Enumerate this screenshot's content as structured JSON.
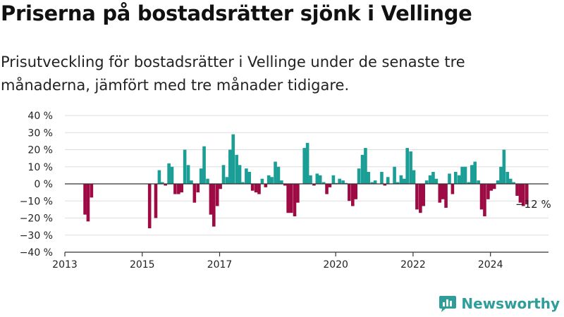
{
  "title": "Priserna på bostadsrätter sjönk i Vellinge",
  "subtitle": "Prisutveckling för bostadsrätter i Vellinge under de senaste tre månaderna, jämfört med tre månader tidigare.",
  "brand": "Newsworthy",
  "colors": {
    "positive": "#1a9e96",
    "negative": "#9e0a44",
    "grid": "#dddddd",
    "zero_line": "#333333",
    "brand": "#2f9e9a"
  },
  "chart_data": {
    "type": "bar",
    "title": "",
    "xlabel": "",
    "ylabel": "",
    "ylim": [
      -40,
      40
    ],
    "y_ticks": [
      -40,
      -30,
      -20,
      -10,
      0,
      10,
      20,
      30,
      40
    ],
    "y_tick_labels": [
      "−40 %",
      "−30 %",
      "−20 %",
      "−10 %",
      "0 %",
      "10 %",
      "20 %",
      "30 %",
      "40 %"
    ],
    "x_range": [
      2013.0,
      2025.5
    ],
    "x_ticks": [
      2013,
      2015,
      2017,
      2020,
      2022,
      2024
    ],
    "grid": true,
    "annotation": {
      "x": 2024.96,
      "y": -12,
      "text": "−12 %"
    },
    "points": [
      {
        "x": 2013.52,
        "y": -18
      },
      {
        "x": 2013.6,
        "y": -22
      },
      {
        "x": 2013.69,
        "y": -8
      },
      {
        "x": 2015.19,
        "y": -26
      },
      {
        "x": 2015.35,
        "y": -20
      },
      {
        "x": 2015.44,
        "y": 8
      },
      {
        "x": 2015.52,
        "y": 1
      },
      {
        "x": 2015.6,
        "y": -1
      },
      {
        "x": 2015.69,
        "y": 12
      },
      {
        "x": 2015.77,
        "y": 10
      },
      {
        "x": 2015.85,
        "y": -6
      },
      {
        "x": 2015.94,
        "y": -6
      },
      {
        "x": 2016.02,
        "y": -5
      },
      {
        "x": 2016.1,
        "y": 20
      },
      {
        "x": 2016.19,
        "y": 11
      },
      {
        "x": 2016.27,
        "y": 2
      },
      {
        "x": 2016.35,
        "y": -11
      },
      {
        "x": 2016.44,
        "y": -5
      },
      {
        "x": 2016.52,
        "y": 9
      },
      {
        "x": 2016.6,
        "y": 22
      },
      {
        "x": 2016.69,
        "y": 3
      },
      {
        "x": 2016.77,
        "y": -18
      },
      {
        "x": 2016.85,
        "y": -25
      },
      {
        "x": 2016.94,
        "y": -13
      },
      {
        "x": 2017.02,
        "y": -3
      },
      {
        "x": 2017.1,
        "y": 11
      },
      {
        "x": 2017.19,
        "y": 4
      },
      {
        "x": 2017.27,
        "y": 20
      },
      {
        "x": 2017.35,
        "y": 29
      },
      {
        "x": 2017.44,
        "y": 17
      },
      {
        "x": 2017.52,
        "y": 11
      },
      {
        "x": 2017.6,
        "y": 1
      },
      {
        "x": 2017.69,
        "y": 9
      },
      {
        "x": 2017.77,
        "y": 7
      },
      {
        "x": 2017.85,
        "y": -4
      },
      {
        "x": 2017.94,
        "y": -5
      },
      {
        "x": 2018.02,
        "y": -6
      },
      {
        "x": 2018.1,
        "y": 3
      },
      {
        "x": 2018.19,
        "y": -2
      },
      {
        "x": 2018.27,
        "y": 5
      },
      {
        "x": 2018.35,
        "y": 4
      },
      {
        "x": 2018.44,
        "y": 13
      },
      {
        "x": 2018.52,
        "y": 10
      },
      {
        "x": 2018.6,
        "y": 2
      },
      {
        "x": 2018.69,
        "y": -1
      },
      {
        "x": 2018.77,
        "y": -17
      },
      {
        "x": 2018.85,
        "y": -17
      },
      {
        "x": 2018.94,
        "y": -19
      },
      {
        "x": 2019.02,
        "y": -11
      },
      {
        "x": 2019.19,
        "y": 21
      },
      {
        "x": 2019.27,
        "y": 24
      },
      {
        "x": 2019.35,
        "y": 5
      },
      {
        "x": 2019.44,
        "y": -1
      },
      {
        "x": 2019.52,
        "y": 6
      },
      {
        "x": 2019.6,
        "y": 5
      },
      {
        "x": 2019.69,
        "y": 1
      },
      {
        "x": 2019.77,
        "y": -6
      },
      {
        "x": 2019.85,
        "y": -2
      },
      {
        "x": 2019.94,
        "y": 5
      },
      {
        "x": 2020.02,
        "y": 0.5
      },
      {
        "x": 2020.1,
        "y": 3
      },
      {
        "x": 2020.19,
        "y": 2
      },
      {
        "x": 2020.27,
        "y": 0.5
      },
      {
        "x": 2020.35,
        "y": -10
      },
      {
        "x": 2020.44,
        "y": -13
      },
      {
        "x": 2020.52,
        "y": -9
      },
      {
        "x": 2020.6,
        "y": 9
      },
      {
        "x": 2020.69,
        "y": 17
      },
      {
        "x": 2020.77,
        "y": 21
      },
      {
        "x": 2020.85,
        "y": 7
      },
      {
        "x": 2020.94,
        "y": 1
      },
      {
        "x": 2021.02,
        "y": 2
      },
      {
        "x": 2021.19,
        "y": 7
      },
      {
        "x": 2021.27,
        "y": -1
      },
      {
        "x": 2021.35,
        "y": 4
      },
      {
        "x": 2021.52,
        "y": 10
      },
      {
        "x": 2021.6,
        "y": 1
      },
      {
        "x": 2021.69,
        "y": 5
      },
      {
        "x": 2021.77,
        "y": 3
      },
      {
        "x": 2021.85,
        "y": 21
      },
      {
        "x": 2021.94,
        "y": 19
      },
      {
        "x": 2022.02,
        "y": 8
      },
      {
        "x": 2022.1,
        "y": -15
      },
      {
        "x": 2022.19,
        "y": -17
      },
      {
        "x": 2022.27,
        "y": -13
      },
      {
        "x": 2022.35,
        "y": 2
      },
      {
        "x": 2022.44,
        "y": 5
      },
      {
        "x": 2022.52,
        "y": 7
      },
      {
        "x": 2022.6,
        "y": 3
      },
      {
        "x": 2022.69,
        "y": -11
      },
      {
        "x": 2022.77,
        "y": -9
      },
      {
        "x": 2022.85,
        "y": -14
      },
      {
        "x": 2022.94,
        "y": 6
      },
      {
        "x": 2023.02,
        "y": -6
      },
      {
        "x": 2023.1,
        "y": 7
      },
      {
        "x": 2023.19,
        "y": 5
      },
      {
        "x": 2023.27,
        "y": 10
      },
      {
        "x": 2023.35,
        "y": 10
      },
      {
        "x": 2023.44,
        "y": 1
      },
      {
        "x": 2023.52,
        "y": 11
      },
      {
        "x": 2023.6,
        "y": 13
      },
      {
        "x": 2023.69,
        "y": 2
      },
      {
        "x": 2023.77,
        "y": -15
      },
      {
        "x": 2023.85,
        "y": -19
      },
      {
        "x": 2023.94,
        "y": -9
      },
      {
        "x": 2024.02,
        "y": -4
      },
      {
        "x": 2024.1,
        "y": -3
      },
      {
        "x": 2024.19,
        "y": 2
      },
      {
        "x": 2024.27,
        "y": 10
      },
      {
        "x": 2024.35,
        "y": 20
      },
      {
        "x": 2024.44,
        "y": 7
      },
      {
        "x": 2024.52,
        "y": 3
      },
      {
        "x": 2024.6,
        "y": 1
      },
      {
        "x": 2024.69,
        "y": -7
      },
      {
        "x": 2024.77,
        "y": -11
      },
      {
        "x": 2024.85,
        "y": -13
      },
      {
        "x": 2024.94,
        "y": -12
      }
    ]
  }
}
